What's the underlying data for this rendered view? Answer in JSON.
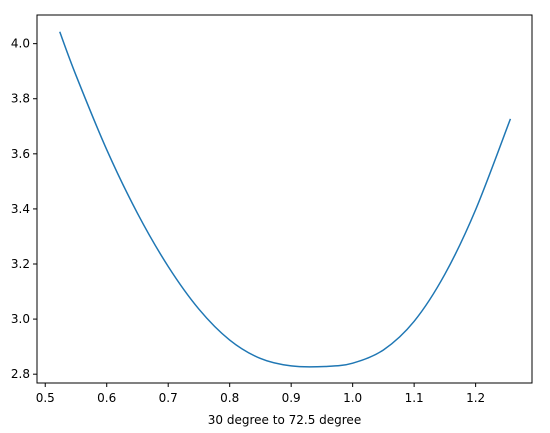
{
  "chart_data": {
    "type": "line",
    "title": "",
    "xlabel": "30 degree to 72.5 degree",
    "ylabel": "",
    "xlim": [
      0.4866,
      1.2917
    ],
    "ylim": [
      2.768,
      4.104
    ],
    "grid": false,
    "x_ticks": [
      0.5,
      0.6,
      0.7,
      0.8,
      0.9,
      1.0,
      1.1,
      1.2
    ],
    "x_tick_labels": [
      "0.5",
      "0.6",
      "0.7",
      "0.8",
      "0.9",
      "1.0",
      "1.1",
      "1.2"
    ],
    "y_ticks": [
      2.8,
      3.0,
      3.2,
      3.4,
      3.6,
      3.8,
      4.0
    ],
    "y_tick_labels": [
      "2.8",
      "3.0",
      "3.2",
      "3.4",
      "3.6",
      "3.8",
      "4.0"
    ],
    "series": [
      {
        "color": "#1f77b4",
        "x": [
          0.5236,
          0.55,
          0.6,
          0.65,
          0.7,
          0.75,
          0.8,
          0.85,
          0.9,
          0.9553,
          1.0,
          1.05,
          1.1,
          1.15,
          1.2,
          1.2566
        ],
        "y": [
          4.043,
          3.885,
          3.615,
          3.384,
          3.191,
          3.036,
          2.924,
          2.857,
          2.83,
          2.828,
          2.84,
          2.888,
          2.992,
          3.163,
          3.397,
          3.727
        ]
      }
    ]
  }
}
